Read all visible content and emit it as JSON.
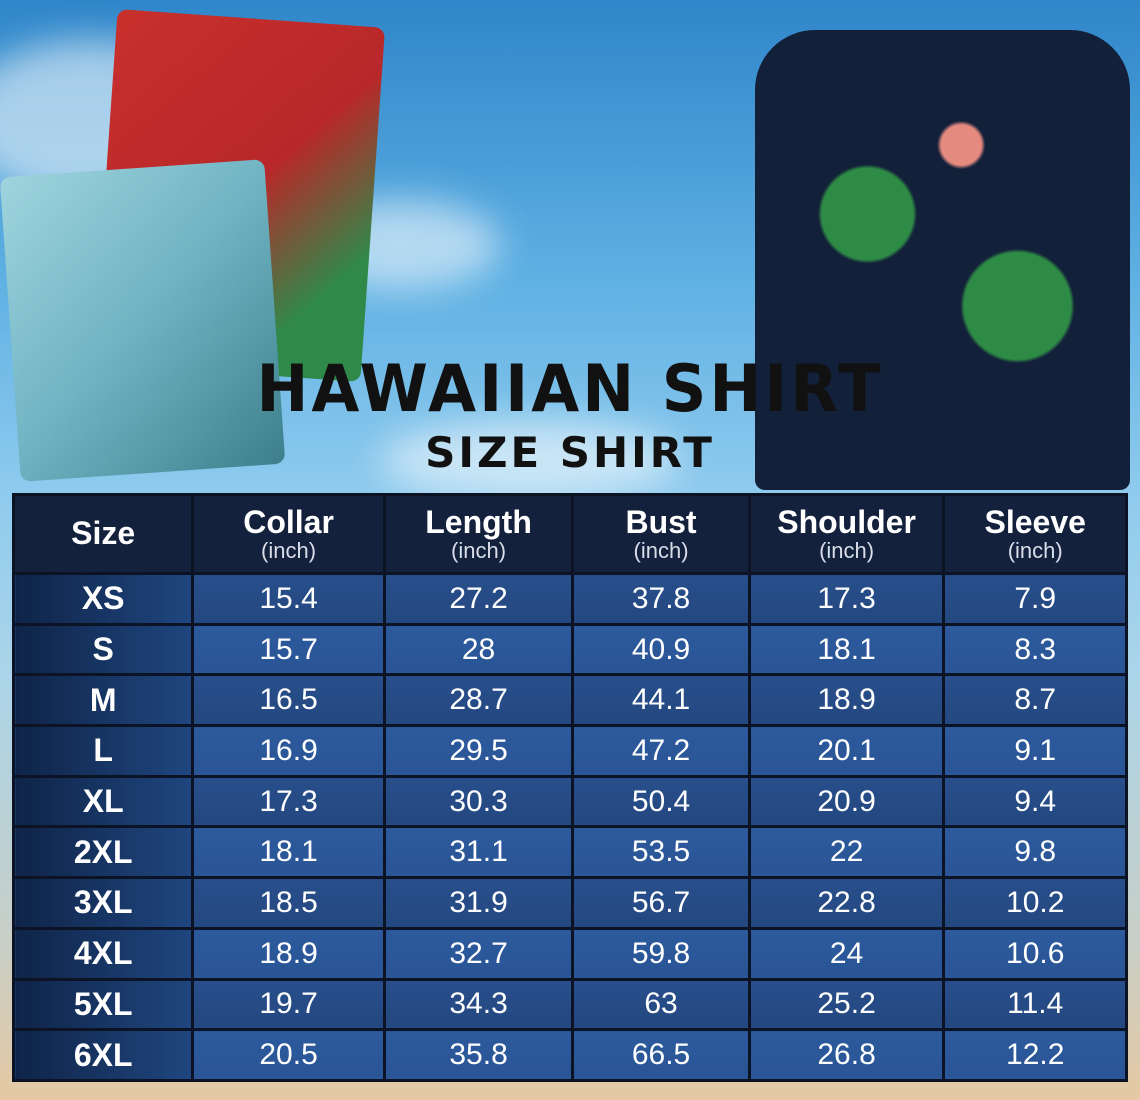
{
  "title": "HAWAIIAN SHIRT",
  "subtitle": "SIZE SHIRT",
  "colors": {
    "header_bg": "#14213d",
    "cell_bg": "#2c5a9c",
    "text": "#ffffff"
  },
  "table": {
    "headers": [
      {
        "label": "Size",
        "unit": ""
      },
      {
        "label": "Collar",
        "unit": "(inch)"
      },
      {
        "label": "Length",
        "unit": "(inch)"
      },
      {
        "label": "Bust",
        "unit": "(inch)"
      },
      {
        "label": "Shoulder",
        "unit": "(inch)"
      },
      {
        "label": "Sleeve",
        "unit": "(inch)"
      }
    ],
    "rows": [
      [
        "XS",
        "15.4",
        "27.2",
        "37.8",
        "17.3",
        "7.9"
      ],
      [
        "S",
        "15.7",
        "28",
        "40.9",
        "18.1",
        "8.3"
      ],
      [
        "M",
        "16.5",
        "28.7",
        "44.1",
        "18.9",
        "8.7"
      ],
      [
        "L",
        "16.9",
        "29.5",
        "47.2",
        "20.1",
        "9.1"
      ],
      [
        "XL",
        "17.3",
        "30.3",
        "50.4",
        "20.9",
        "9.4"
      ],
      [
        "2XL",
        "18.1",
        "31.1",
        "53.5",
        "22",
        "9.8"
      ],
      [
        "3XL",
        "18.5",
        "31.9",
        "56.7",
        "22.8",
        "10.2"
      ],
      [
        "4XL",
        "18.9",
        "32.7",
        "59.8",
        "24",
        "10.6"
      ],
      [
        "5XL",
        "19.7",
        "34.3",
        "63",
        "25.2",
        "11.4"
      ],
      [
        "6XL",
        "20.5",
        "35.8",
        "66.5",
        "26.8",
        "12.2"
      ]
    ]
  }
}
